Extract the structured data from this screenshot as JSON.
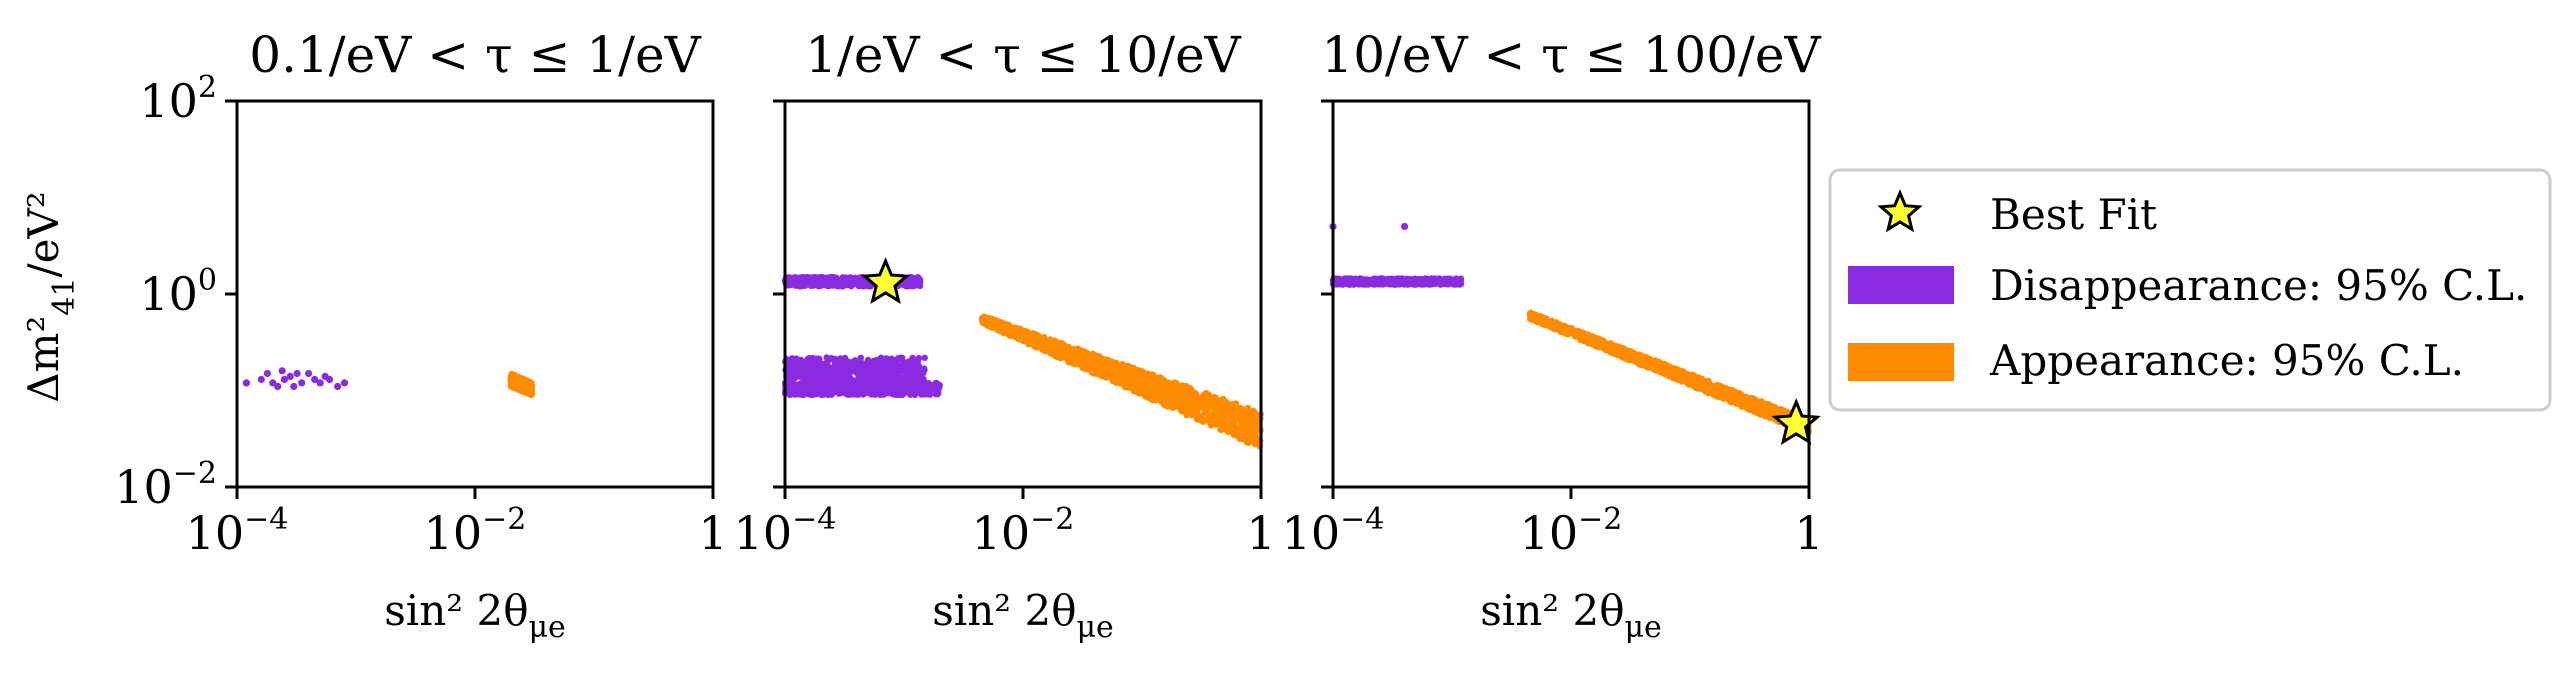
{
  "chart_data": {
    "type": "scatter",
    "x_scale": "log",
    "y_scale": "log",
    "xlim": [
      0.0001,
      1
    ],
    "ylim": [
      0.01,
      100
    ],
    "xlabel": "sin² 2θ",
    "xlabel_sub": "μe",
    "ylabel": "Δm²",
    "ylabel_sub": "41",
    "ylabel_unit": "/eV²",
    "x_ticks": [
      {
        "value": 0.0001,
        "base": "10",
        "exp": "−4"
      },
      {
        "value": 0.01,
        "base": "10",
        "exp": "−2"
      },
      {
        "value": 1,
        "base": "1",
        "exp": ""
      }
    ],
    "y_ticks": [
      {
        "value": 100,
        "base": "10",
        "exp": "2"
      },
      {
        "value": 1,
        "base": "10",
        "exp": "0"
      },
      {
        "value": 0.01,
        "base": "10",
        "exp": "−2"
      }
    ],
    "panels": [
      {
        "title": "0.1/eV < τ ≤ 1/eV",
        "disappearance_points": [
          [
            0.00012,
            0.12
          ],
          [
            0.00016,
            0.13
          ],
          [
            0.00018,
            0.15
          ],
          [
            0.0002,
            0.12
          ],
          [
            0.00022,
            0.11
          ],
          [
            0.00025,
            0.13
          ],
          [
            0.00028,
            0.14
          ],
          [
            0.0003,
            0.11
          ],
          [
            0.00035,
            0.12
          ],
          [
            0.0004,
            0.15
          ],
          [
            0.00045,
            0.13
          ],
          [
            0.0005,
            0.12
          ],
          [
            0.0006,
            0.13
          ],
          [
            0.0007,
            0.11
          ],
          [
            0.0008,
            0.12
          ],
          [
            0.00024,
            0.16
          ],
          [
            0.00032,
            0.15
          ],
          [
            0.00055,
            0.14
          ]
        ],
        "appearance_clusters": [
          {
            "x": [
              0.02,
              0.03
            ],
            "y_at_xmin": [
              0.11,
              0.15
            ],
            "y_at_xmax": [
              0.09,
              0.12
            ]
          }
        ],
        "disappearance_bands": [],
        "best_fit": null
      },
      {
        "title": "1/eV < τ ≤ 10/eV",
        "disappearance_points": [],
        "disappearance_bands": [
          {
            "x": [
              0.0001,
              0.0014
            ],
            "y": [
              1.2,
              1.5
            ]
          },
          {
            "x": [
              0.0001,
              0.0015
            ],
            "y": [
              0.12,
              0.22
            ]
          },
          {
            "x": [
              0.0001,
              0.002
            ],
            "y": [
              0.09,
              0.12
            ]
          }
        ],
        "appearance_clusters": [
          {
            "x": [
              0.0045,
              1.0
            ],
            "y_at_xmin": [
              0.5,
              0.6
            ],
            "y_at_xmax": [
              0.025,
              0.06
            ]
          }
        ],
        "best_fit": {
          "x": 0.0007,
          "y": 1.3
        }
      },
      {
        "title": "10/eV < τ ≤ 100/eV",
        "disappearance_points": [
          [
            0.0001,
            5
          ],
          [
            0.0004,
            5
          ]
        ],
        "disappearance_bands": [
          {
            "x": [
              0.0001,
              0.0012
            ],
            "y": [
              1.25,
              1.45
            ]
          }
        ],
        "appearance_clusters": [
          {
            "x": [
              0.0045,
              1.0
            ],
            "y_at_xmin": [
              0.55,
              0.65
            ],
            "y_at_xmax": [
              0.035,
              0.05
            ]
          }
        ],
        "best_fit": {
          "x": 0.78,
          "y": 0.045
        }
      }
    ],
    "legend": {
      "position": "right",
      "entries": [
        {
          "label": "Best Fit",
          "marker": "star",
          "color": "#ffff33"
        },
        {
          "label": "Disappearance: 95% C.L.",
          "marker": "patch",
          "color": "#8a2be2"
        },
        {
          "label": "Appearance: 95% C.L.",
          "marker": "patch",
          "color": "#ff8c00"
        }
      ]
    },
    "colors": {
      "disappearance": "#8a2be2",
      "appearance": "#ff8c00",
      "best_fit": "#ffff33"
    }
  }
}
